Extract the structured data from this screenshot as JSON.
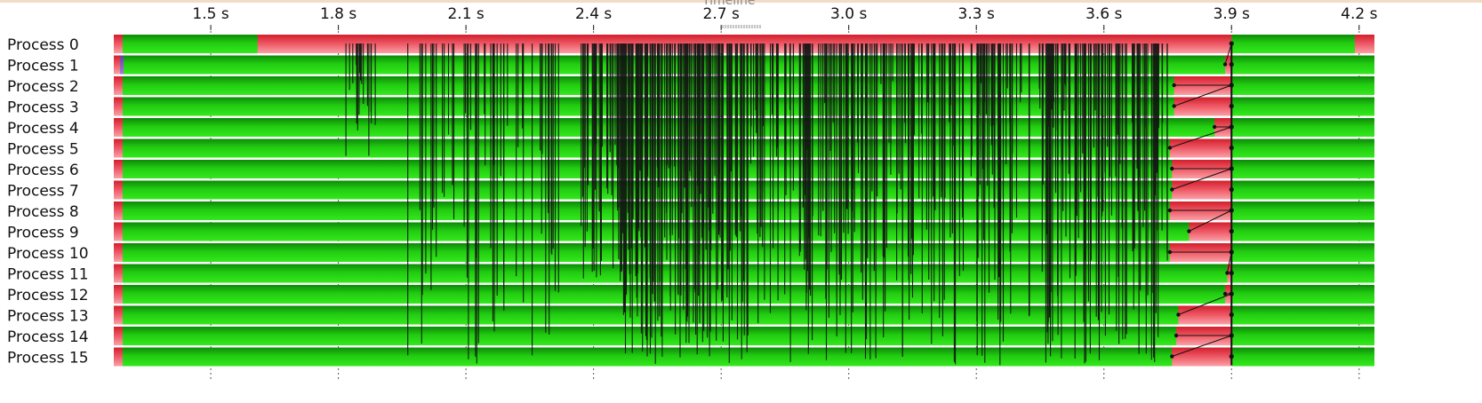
{
  "panel": {
    "title": "Timeline"
  },
  "axis": {
    "unit": "s",
    "ticks": [
      "1.5 s",
      "1.8 s",
      "2.1 s",
      "2.4 s",
      "2.7 s",
      "3.0 s",
      "3.3 s",
      "3.6 s",
      "3.9 s",
      "4.2 s"
    ],
    "tick_values": [
      1.5,
      1.8,
      2.1,
      2.4,
      2.7,
      3.0,
      3.3,
      3.6,
      3.9,
      4.2
    ],
    "range": [
      1.272,
      4.236
    ]
  },
  "processes": [
    "Process 0",
    "Process 1",
    "Process 2",
    "Process 3",
    "Process 4",
    "Process 5",
    "Process 6",
    "Process 7",
    "Process 8",
    "Process 9",
    "Process 10",
    "Process 11",
    "Process 12",
    "Process 13",
    "Process 14",
    "Process 15"
  ],
  "colors": {
    "running": "#22cc11",
    "waiting": "#e8505a",
    "message_line": "#111111",
    "grid": "#555555"
  },
  "states": {
    "trace_start": 1.272,
    "trace_end": 4.236,
    "process_0_wait": [
      1.61,
      3.895
    ],
    "process_0_final_wait": [
      4.19,
      4.236
    ],
    "final_waits": [
      [
        3.895,
        3.9
      ],
      [
        3.885,
        3.9
      ],
      [
        3.765,
        3.9
      ],
      [
        3.765,
        3.9
      ],
      [
        3.86,
        3.9
      ],
      [
        3.755,
        3.9
      ],
      [
        3.76,
        3.9
      ],
      [
        3.76,
        3.9
      ],
      [
        3.755,
        3.9
      ],
      [
        3.8,
        3.9
      ],
      [
        3.755,
        3.9
      ],
      [
        3.89,
        3.9
      ],
      [
        3.885,
        3.9
      ],
      [
        3.775,
        3.9
      ],
      [
        3.77,
        3.9
      ],
      [
        3.76,
        3.9
      ]
    ]
  }
}
